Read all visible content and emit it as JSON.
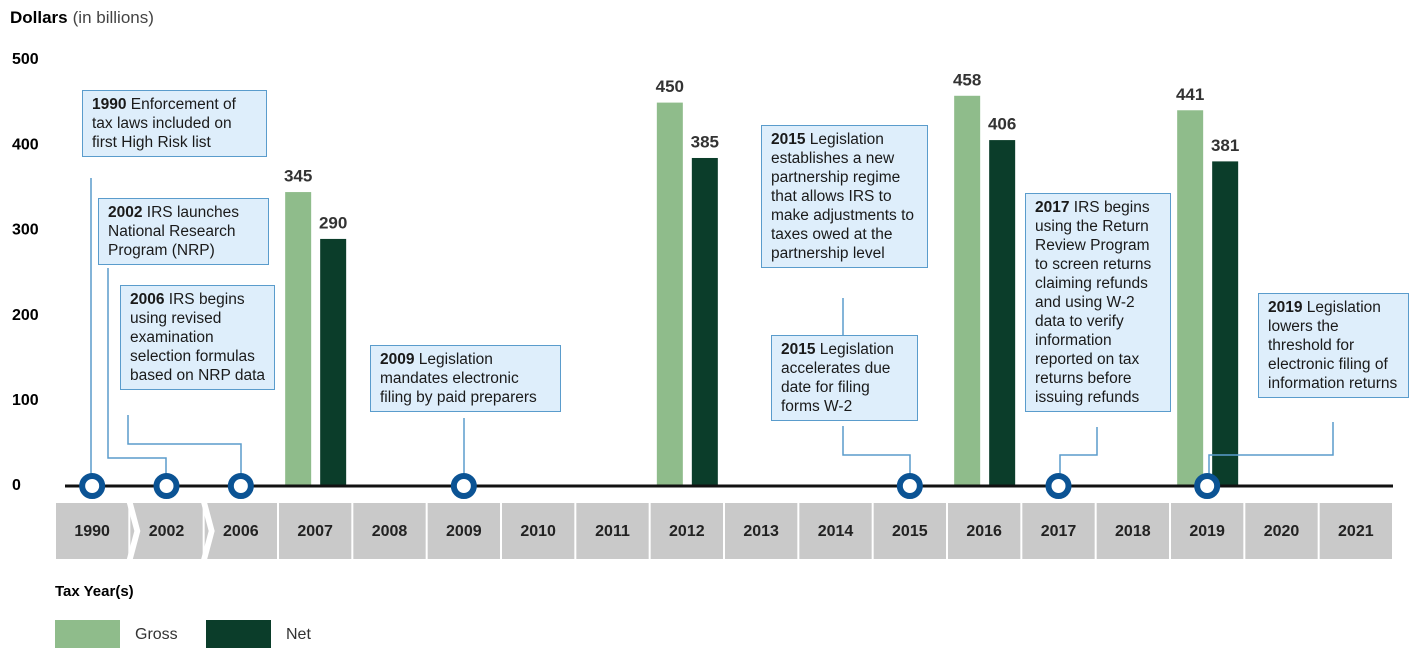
{
  "chart_data": {
    "type": "bar",
    "y_label": "Dollars",
    "y_label_unit": "(in billions)",
    "x_label": "Tax Year(s)",
    "categories": [
      "1990",
      "2002",
      "2006",
      "2007",
      "2008",
      "2009",
      "2010",
      "2011",
      "2012",
      "2013",
      "2014",
      "2015",
      "2016",
      "2017",
      "2018",
      "2019",
      "2020",
      "2021"
    ],
    "series": [
      {
        "name": "Gross",
        "color": "#8fbc8b",
        "values": [
          null,
          null,
          null,
          345,
          null,
          null,
          null,
          null,
          450,
          null,
          null,
          null,
          458,
          null,
          null,
          441,
          null,
          null
        ]
      },
      {
        "name": "Net",
        "color": "#0b3d2a",
        "values": [
          null,
          null,
          null,
          290,
          null,
          null,
          null,
          null,
          385,
          null,
          null,
          null,
          406,
          null,
          null,
          381,
          null,
          null
        ]
      }
    ],
    "ylim": [
      0,
      500
    ],
    "yticks": [
      0,
      100,
      200,
      300,
      400,
      500
    ],
    "grid": false,
    "annotations": [
      {
        "year": "1990",
        "text": "Enforcement of tax laws included on first High Risk list"
      },
      {
        "year": "2002",
        "text": "IRS launches National Research Program (NRP)"
      },
      {
        "year": "2006",
        "text": "IRS begins using revised examination selection formulas based on NRP data"
      },
      {
        "year": "2009",
        "text": "Legislation mandates electronic filing by paid preparers"
      },
      {
        "year": "2015",
        "text": "Legislation establishes a new partnership regime that allows IRS to make adjustments to taxes owed at the partnership level"
      },
      {
        "year": "2015",
        "text": "Legislation accelerates due date for filing forms W-2"
      },
      {
        "year": "2017",
        "text": "IRS begins using the Return Review Program to screen returns claiming refunds and using W-2 data to verify information reported on tax returns before issuing refunds"
      },
      {
        "year": "2019",
        "text": "Legislation lowers the threshold for electronic filing of information returns"
      }
    ]
  }
}
